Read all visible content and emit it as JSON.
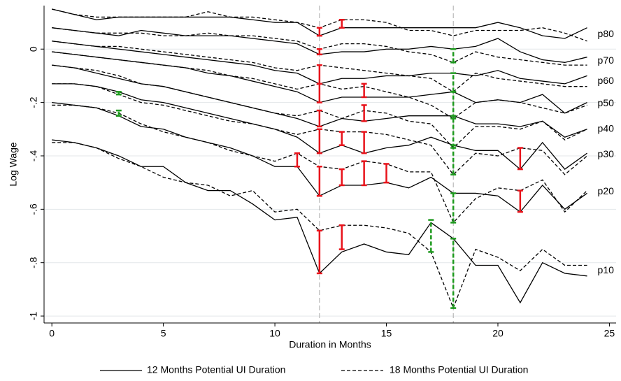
{
  "chart_data": {
    "type": "line",
    "x_label": "Duration in Months",
    "y_label": "Log Wage",
    "x": [
      0,
      1,
      2,
      3,
      4,
      5,
      6,
      7,
      8,
      9,
      10,
      11,
      12,
      13,
      14,
      15,
      16,
      17,
      18,
      19,
      20,
      21,
      22,
      23,
      24
    ],
    "xlim": [
      -0.35,
      25.3
    ],
    "xticks": [
      0,
      5,
      10,
      15,
      20,
      25
    ],
    "ylim": [
      -1.026,
      0.163
    ],
    "yticks": [
      {
        "value": -1,
        "label": "-1"
      },
      {
        "value": -0.8,
        "label": "-.8"
      },
      {
        "value": -0.6,
        "label": "-.6"
      },
      {
        "value": -0.4,
        "label": "-.4"
      },
      {
        "value": -0.2,
        "label": "-.2"
      },
      0
    ],
    "grid": true,
    "vlines": [
      12,
      18
    ],
    "legend": "bottom",
    "percentiles": [
      "p10",
      "p20",
      "p30",
      "p40",
      "p50",
      "p60",
      "p70",
      "p80"
    ],
    "series": [
      {
        "name": "12 Months Potential UI Duration",
        "color": "#000000",
        "line_style": "solid",
        "values": [
          [
            -0.34,
            -0.35,
            -0.37,
            -0.4,
            -0.44,
            -0.44,
            -0.5,
            -0.53,
            -0.53,
            -0.58,
            -0.64,
            -0.63,
            -0.84,
            -0.76,
            -0.73,
            -0.76,
            -0.77,
            -0.65,
            -0.71,
            -0.81,
            -0.81,
            -0.95,
            -0.8,
            -0.84,
            -0.85
          ],
          [
            -0.2,
            -0.21,
            -0.22,
            -0.25,
            -0.29,
            -0.3,
            -0.33,
            -0.35,
            -0.37,
            -0.4,
            -0.44,
            -0.44,
            -0.55,
            -0.51,
            -0.51,
            -0.5,
            -0.52,
            -0.48,
            -0.54,
            -0.54,
            -0.55,
            -0.61,
            -0.51,
            -0.6,
            -0.54
          ],
          [
            -0.13,
            -0.13,
            -0.14,
            -0.16,
            -0.19,
            -0.2,
            -0.22,
            -0.24,
            -0.26,
            -0.28,
            -0.3,
            -0.33,
            -0.39,
            -0.36,
            -0.39,
            -0.37,
            -0.36,
            -0.33,
            -0.36,
            -0.38,
            -0.38,
            -0.45,
            -0.35,
            -0.45,
            -0.39
          ],
          [
            -0.06,
            -0.07,
            -0.09,
            -0.11,
            -0.13,
            -0.14,
            -0.16,
            -0.18,
            -0.2,
            -0.22,
            -0.24,
            -0.26,
            -0.29,
            -0.26,
            -0.27,
            -0.26,
            -0.25,
            -0.25,
            -0.25,
            -0.28,
            -0.28,
            -0.29,
            -0.27,
            -0.33,
            -0.3
          ],
          [
            -0.01,
            -0.02,
            -0.03,
            -0.04,
            -0.05,
            -0.06,
            -0.07,
            -0.09,
            -0.1,
            -0.12,
            -0.14,
            -0.16,
            -0.2,
            -0.18,
            -0.18,
            -0.18,
            -0.18,
            -0.17,
            -0.16,
            -0.2,
            -0.19,
            -0.2,
            -0.17,
            -0.24,
            -0.2
          ],
          [
            0.03,
            0.02,
            0.01,
            0.0,
            -0.01,
            -0.02,
            -0.03,
            -0.04,
            -0.05,
            -0.06,
            -0.08,
            -0.09,
            -0.13,
            -0.11,
            -0.11,
            -0.1,
            -0.1,
            -0.09,
            -0.09,
            -0.1,
            -0.08,
            -0.11,
            -0.12,
            -0.13,
            -0.1
          ],
          [
            0.08,
            0.07,
            0.06,
            0.05,
            0.07,
            0.06,
            0.05,
            0.05,
            0.05,
            0.04,
            0.03,
            0.02,
            -0.02,
            -0.01,
            -0.01,
            0.0,
            0.0,
            0.01,
            0.0,
            0.01,
            0.04,
            -0.01,
            -0.04,
            -0.05,
            -0.03
          ],
          [
            0.15,
            0.13,
            0.11,
            0.12,
            0.12,
            0.12,
            0.12,
            0.12,
            0.12,
            0.11,
            0.1,
            0.1,
            0.05,
            0.08,
            0.08,
            0.08,
            0.08,
            0.08,
            0.08,
            0.08,
            0.1,
            0.08,
            0.05,
            0.04,
            0.08
          ]
        ]
      },
      {
        "name": "18 Months Potential UI Duration",
        "color": "#000000",
        "line_style": "dashed",
        "values": [
          [
            -0.35,
            -0.35,
            -0.37,
            -0.41,
            -0.44,
            -0.48,
            -0.5,
            -0.51,
            -0.55,
            -0.53,
            -0.61,
            -0.6,
            -0.68,
            -0.66,
            -0.66,
            -0.67,
            -0.69,
            -0.76,
            -0.97,
            -0.75,
            -0.78,
            -0.83,
            -0.75,
            -0.81,
            -0.81
          ],
          [
            -0.21,
            -0.21,
            -0.22,
            -0.24,
            -0.28,
            -0.31,
            -0.33,
            -0.35,
            -0.38,
            -0.4,
            -0.42,
            -0.39,
            -0.44,
            -0.45,
            -0.42,
            -0.43,
            -0.46,
            -0.46,
            -0.65,
            -0.56,
            -0.52,
            -0.53,
            -0.49,
            -0.61,
            -0.53
          ],
          [
            -0.13,
            -0.13,
            -0.14,
            -0.17,
            -0.2,
            -0.21,
            -0.23,
            -0.25,
            -0.27,
            -0.28,
            -0.3,
            -0.32,
            -0.3,
            -0.31,
            -0.31,
            -0.32,
            -0.34,
            -0.36,
            -0.47,
            -0.39,
            -0.4,
            -0.37,
            -0.38,
            -0.47,
            -0.4
          ],
          [
            -0.06,
            -0.07,
            -0.08,
            -0.1,
            -0.13,
            -0.14,
            -0.16,
            -0.18,
            -0.2,
            -0.22,
            -0.24,
            -0.25,
            -0.23,
            -0.26,
            -0.23,
            -0.24,
            -0.27,
            -0.28,
            -0.37,
            -0.29,
            -0.29,
            -0.3,
            -0.27,
            -0.34,
            -0.3
          ],
          [
            -0.01,
            -0.02,
            -0.03,
            -0.04,
            -0.05,
            -0.06,
            -0.07,
            -0.08,
            -0.1,
            -0.11,
            -0.13,
            -0.15,
            -0.13,
            -0.15,
            -0.14,
            -0.16,
            -0.18,
            -0.21,
            -0.26,
            -0.2,
            -0.19,
            -0.2,
            -0.22,
            -0.24,
            -0.21
          ],
          [
            0.03,
            0.02,
            0.01,
            0.01,
            0.0,
            -0.01,
            -0.02,
            -0.03,
            -0.04,
            -0.05,
            -0.07,
            -0.08,
            -0.06,
            -0.07,
            -0.08,
            -0.09,
            -0.1,
            -0.11,
            -0.16,
            -0.09,
            -0.11,
            -0.12,
            -0.13,
            -0.14,
            -0.14
          ],
          [
            0.08,
            0.07,
            0.06,
            0.06,
            0.06,
            0.05,
            0.05,
            0.06,
            0.05,
            0.05,
            0.04,
            0.03,
            0.0,
            0.02,
            0.02,
            0.01,
            -0.01,
            -0.02,
            -0.05,
            -0.01,
            -0.03,
            -0.04,
            -0.05,
            -0.06,
            -0.06
          ],
          [
            0.15,
            0.13,
            0.12,
            0.12,
            0.12,
            0.12,
            0.12,
            0.14,
            0.12,
            0.12,
            0.11,
            0.1,
            0.08,
            0.11,
            0.11,
            0.1,
            0.07,
            0.07,
            0.05,
            0.07,
            0.07,
            0.07,
            0.08,
            0.06,
            0.03
          ]
        ]
      }
    ],
    "intervals": [
      {
        "x": 12,
        "low": 0.05,
        "high": 0.08,
        "color": "#e8131b"
      },
      {
        "x": 13,
        "low": 0.08,
        "high": 0.11,
        "color": "#e8131b"
      },
      {
        "x": 12,
        "low": -0.02,
        "high": 0.0,
        "color": "#e8131b"
      },
      {
        "x": 12,
        "low": -0.13,
        "high": -0.06,
        "color": "#e8131b"
      },
      {
        "x": 12,
        "low": -0.2,
        "high": -0.13,
        "color": "#e8131b"
      },
      {
        "x": 14,
        "low": -0.18,
        "high": -0.13,
        "color": "#e8131b"
      },
      {
        "x": 12,
        "low": -0.29,
        "high": -0.23,
        "color": "#e8131b"
      },
      {
        "x": 14,
        "low": -0.27,
        "high": -0.21,
        "color": "#e8131b"
      },
      {
        "x": 12,
        "low": -0.39,
        "high": -0.3,
        "color": "#e8131b"
      },
      {
        "x": 13,
        "low": -0.36,
        "high": -0.31,
        "color": "#e8131b"
      },
      {
        "x": 14,
        "low": -0.39,
        "high": -0.31,
        "color": "#e8131b"
      },
      {
        "x": 21,
        "low": -0.45,
        "high": -0.37,
        "color": "#e8131b"
      },
      {
        "x": 11,
        "low": -0.44,
        "high": -0.39,
        "color": "#e8131b"
      },
      {
        "x": 12,
        "low": -0.55,
        "high": -0.44,
        "color": "#e8131b"
      },
      {
        "x": 13,
        "low": -0.51,
        "high": -0.45,
        "color": "#e8131b"
      },
      {
        "x": 14,
        "low": -0.51,
        "high": -0.42,
        "color": "#e8131b"
      },
      {
        "x": 15,
        "low": -0.5,
        "high": -0.43,
        "color": "#e8131b"
      },
      {
        "x": 21,
        "low": -0.61,
        "high": -0.53,
        "color": "#e8131b"
      },
      {
        "x": 12,
        "low": -0.84,
        "high": -0.68,
        "color": "#e8131b"
      },
      {
        "x": 13,
        "low": -0.75,
        "high": -0.66,
        "color": "#e8131b"
      },
      {
        "x": 3,
        "low": -0.17,
        "high": -0.16,
        "color": "#1e9a1e"
      },
      {
        "x": 3,
        "low": -0.25,
        "high": -0.23,
        "color": "#1e9a1e"
      },
      {
        "x": 17,
        "low": -0.76,
        "high": -0.64,
        "color": "#1e9a1e"
      },
      {
        "x": 18,
        "low": -0.05,
        "high": 0.0,
        "color": "#1e9a1e"
      },
      {
        "x": 18,
        "low": -0.16,
        "high": -0.09,
        "color": "#1e9a1e"
      },
      {
        "x": 18,
        "low": -0.26,
        "high": -0.16,
        "color": "#1e9a1e"
      },
      {
        "x": 18,
        "low": -0.37,
        "high": -0.25,
        "color": "#1e9a1e"
      },
      {
        "x": 18,
        "low": -0.47,
        "high": -0.36,
        "color": "#1e9a1e"
      },
      {
        "x": 18,
        "low": -0.65,
        "high": -0.54,
        "color": "#1e9a1e"
      },
      {
        "x": 18,
        "low": -0.97,
        "high": -0.71,
        "color": "#1e9a1e"
      }
    ]
  }
}
